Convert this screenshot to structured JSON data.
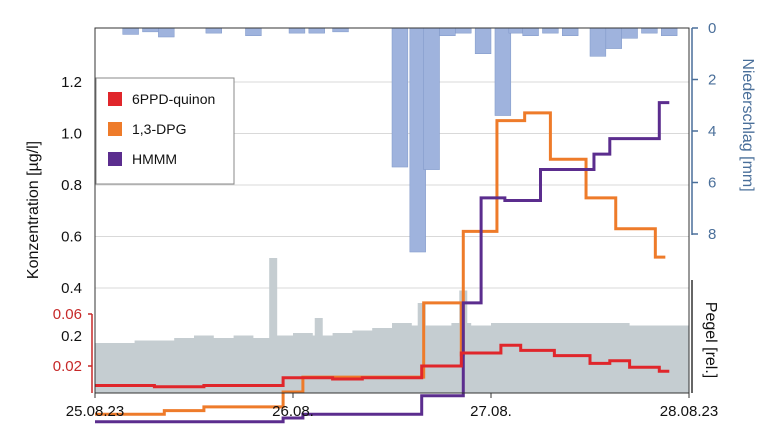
{
  "chart_data": {
    "type": "line",
    "x_axis": {
      "ticks": [
        "25.08.23",
        "26.08.",
        "27.08.",
        "28.08.23"
      ],
      "range_days": [
        0,
        3
      ]
    },
    "y_axis_left": {
      "label": "Konzentration [µg/l]",
      "upper_ticks": [
        "0.4",
        "0.6",
        "0.8",
        "1.0",
        "1.2"
      ],
      "black_lower_ticks": [
        "0.2",
        "0.4"
      ],
      "red_ticks": [
        "0.02",
        "0.06"
      ],
      "ylim": [
        0,
        1.35
      ]
    },
    "y_axis_right_top": {
      "label": "Niederschlag [mm]",
      "ticks": [
        "0",
        "2",
        "4",
        "6",
        "8"
      ],
      "inverted": true,
      "ylim": [
        0,
        8
      ]
    },
    "y_axis_right_bottom": {
      "label": "Pegel [rel.]"
    },
    "grid": "horizontal",
    "legend": {
      "placement": "top-left",
      "entries": [
        "6PPD-quinon",
        "1,3-DPG",
        "HMMM"
      ]
    },
    "colors": {
      "6ppdq": "#e0262b",
      "dpg": "#ee7b2a",
      "hmmm": "#5b2d8e",
      "precip": "#9fb3dd",
      "pegel": "#c5cdd1",
      "grid": "#d9d9d9"
    },
    "series": [
      {
        "name": "1,3-DPG",
        "color": "#ee7b2a",
        "axis": "black",
        "x": [
          0,
          0.35,
          0.55,
          0.95,
          1.05,
          1.45,
          1.66,
          1.85,
          1.86,
          2.03,
          2.17,
          2.3,
          2.48,
          2.63,
          2.83
        ],
        "y": [
          0.06,
          0.07,
          0.08,
          0.12,
          0.16,
          0.16,
          0.36,
          0.22,
          0.62,
          1.05,
          1.08,
          0.9,
          0.75,
          0.63,
          0.52
        ]
      },
      {
        "name": "HMMM",
        "color": "#5b2d8e",
        "axis": "black",
        "x": [
          0,
          0.55,
          0.95,
          1.05,
          1.37,
          1.65,
          1.86,
          1.95,
          2.07,
          2.25,
          2.52,
          2.6,
          2.85
        ],
        "y": [
          0.04,
          0.04,
          0.05,
          0.06,
          0.06,
          0.11,
          0.36,
          0.75,
          0.74,
          0.86,
          0.92,
          0.98,
          1.12
        ]
      },
      {
        "name": "6PPD-quinon",
        "color": "#e0262b",
        "axis": "red",
        "x": [
          0,
          0.3,
          0.55,
          0.95,
          1.2,
          1.35,
          1.65,
          1.85,
          2.05,
          2.15,
          2.32,
          2.5,
          2.6,
          2.7,
          2.85
        ],
        "y": [
          0.005,
          0.004,
          0.005,
          0.011,
          0.01,
          0.011,
          0.02,
          0.03,
          0.036,
          0.032,
          0.028,
          0.022,
          0.024,
          0.019,
          0.016
        ]
      }
    ],
    "precipitation_mm": {
      "x": [
        0.18,
        0.28,
        0.36,
        0.6,
        0.8,
        1.02,
        1.12,
        1.24,
        1.54,
        1.63,
        1.7,
        1.78,
        1.86,
        1.96,
        2.06,
        2.13,
        2.2,
        2.3,
        2.4,
        2.54,
        2.62,
        2.7,
        2.8,
        2.9
      ],
      "y": [
        0.25,
        0.15,
        0.35,
        0.2,
        0.3,
        0.2,
        0.2,
        0.15,
        5.4,
        8.7,
        5.5,
        0.3,
        0.2,
        1.0,
        3.4,
        0.2,
        0.3,
        0.2,
        0.3,
        1.1,
        0.8,
        0.4,
        0.2,
        0.3
      ],
      "bar_width_days": 0.08
    },
    "pegel_rel": {
      "x": [
        0,
        0.2,
        0.4,
        0.5,
        0.6,
        0.7,
        0.8,
        0.9,
        1.0,
        1.1,
        1.2,
        1.3,
        1.4,
        1.5,
        1.6,
        1.7,
        1.8,
        1.9,
        2.0,
        2.1,
        2.2,
        2.3,
        2.4,
        2.5,
        2.6,
        2.7,
        2.8,
        2.9
      ],
      "y": [
        0.2,
        0.21,
        0.22,
        0.23,
        0.22,
        0.23,
        0.22,
        0.23,
        0.24,
        0.23,
        0.24,
        0.25,
        0.26,
        0.28,
        0.27,
        0.27,
        0.28,
        0.27,
        0.28,
        0.28,
        0.28,
        0.28,
        0.28,
        0.28,
        0.28,
        0.27,
        0.27,
        0.27
      ],
      "spikes": [
        {
          "x": 1.13,
          "y": 0.3
        },
        {
          "x": 1.65,
          "y": 0.36
        },
        {
          "x": 1.86,
          "y": 0.41
        },
        {
          "x": 0.9,
          "y": 0.54
        }
      ]
    }
  }
}
